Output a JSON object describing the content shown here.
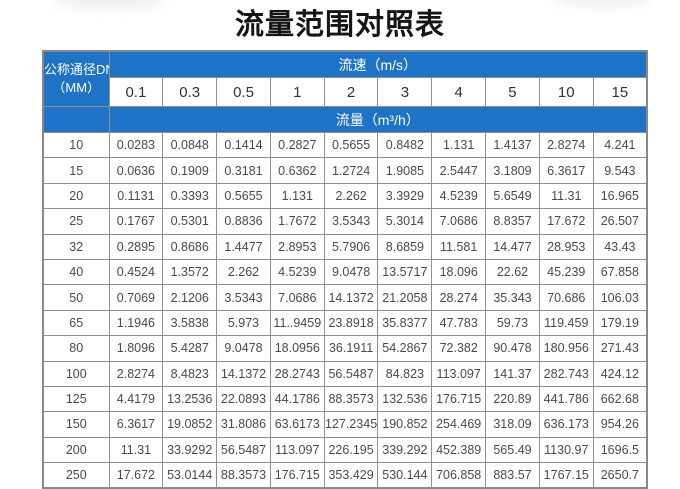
{
  "page": {
    "title": "流量范围对照表"
  },
  "colors": {
    "header_blue": "#1e73c6",
    "border_gray": "#8f8f8f",
    "cell_text": "#4a4a4a",
    "header_text": "#ffffff"
  },
  "chart_data": {
    "type": "table",
    "title": "流量范围对照表",
    "corner_header_line1": "公称通径DN",
    "corner_header_line2": "（MM）",
    "column_group_label": "流速（m/s）",
    "value_group_label": "流量（m³/h）",
    "columns": [
      "0.1",
      "0.3",
      "0.5",
      "1",
      "2",
      "3",
      "4",
      "5",
      "10",
      "15"
    ],
    "rows": [
      [
        "10",
        "0.0283",
        "0.0848",
        "0.1414",
        "0.2827",
        "0.5655",
        "0.8482",
        "1.131",
        "1.4137",
        "2.8274",
        "4.241"
      ],
      [
        "15",
        "0.0636",
        "0.1909",
        "0.3181",
        "0.6362",
        "1.2724",
        "1.9085",
        "2.5447",
        "3.1809",
        "6.3617",
        "9.543"
      ],
      [
        "20",
        "0.1131",
        "0.3393",
        "0.5655",
        "1.131",
        "2.262",
        "3.3929",
        "4.5239",
        "5.6549",
        "11.31",
        "16.965"
      ],
      [
        "25",
        "0.1767",
        "0.5301",
        "0.8836",
        "1.7672",
        "3.5343",
        "5.3014",
        "7.0686",
        "8.8357",
        "17.672",
        "26.507"
      ],
      [
        "32",
        "0.2895",
        "0.8686",
        "1.4477",
        "2.8953",
        "5.7906",
        "8.6859",
        "11.581",
        "14.477",
        "28.953",
        "43.43"
      ],
      [
        "40",
        "0.4524",
        "1.3572",
        "2.262",
        "4.5239",
        "9.0478",
        "13.5717",
        "18.096",
        "22.62",
        "45.239",
        "67.858"
      ],
      [
        "50",
        "0.7069",
        "2.1206",
        "3.5343",
        "7.0686",
        "14.1372",
        "21.2058",
        "28.274",
        "35.343",
        "70.686",
        "106.03"
      ],
      [
        "65",
        "1.1946",
        "3.5838",
        "5.973",
        "11..9459",
        "23.8918",
        "35.8377",
        "47.783",
        "59.73",
        "119.459",
        "179.19"
      ],
      [
        "80",
        "1.8096",
        "5.4287",
        "9.0478",
        "18.0956",
        "36.1911",
        "54.2867",
        "72.382",
        "90.478",
        "180.956",
        "271.43"
      ],
      [
        "100",
        "2.8274",
        "8.4823",
        "14.1372",
        "28.2743",
        "56.5487",
        "84.823",
        "113.097",
        "141.37",
        "282.743",
        "424.12"
      ],
      [
        "125",
        "4.4179",
        "13.2536",
        "22.0893",
        "44.1786",
        "88.3573",
        "132.536",
        "176.715",
        "220.89",
        "441.786",
        "662.68"
      ],
      [
        "150",
        "6.3617",
        "19.0852",
        "31.8086",
        "63.6173",
        "127.2345",
        "190.852",
        "254.469",
        "318.09",
        "636.173",
        "954.26"
      ],
      [
        "200",
        "11.31",
        "33.9292",
        "56.5487",
        "113.097",
        "226.195",
        "339.292",
        "452.389",
        "565.49",
        "1130.97",
        "1696.5"
      ],
      [
        "250",
        "17.672",
        "53.0144",
        "88.3573",
        "176.715",
        "353.429",
        "530.144",
        "706.858",
        "883.57",
        "1767.15",
        "2650.7"
      ]
    ]
  }
}
